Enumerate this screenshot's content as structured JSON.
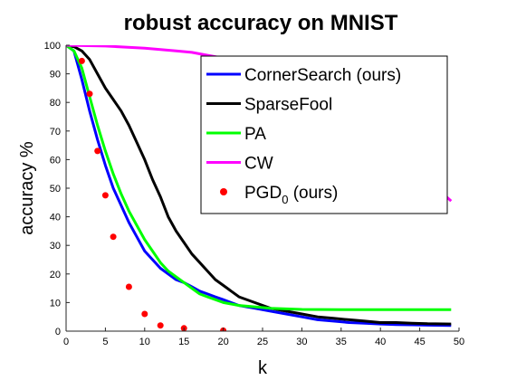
{
  "chart_data": {
    "type": "line",
    "title": "robust accuracy on MNIST",
    "xlabel": "k",
    "ylabel": "accuracy %",
    "xlim": [
      0,
      50
    ],
    "ylim": [
      0,
      100
    ],
    "xticks": [
      0,
      5,
      10,
      15,
      20,
      25,
      30,
      35,
      40,
      45,
      50
    ],
    "yticks": [
      0,
      10,
      20,
      30,
      40,
      50,
      60,
      70,
      80,
      90,
      100
    ],
    "grid": false,
    "legend_position": "top-right",
    "series": [
      {
        "name": "CornerSearch (ours)",
        "style": "line",
        "color": "#0000ff",
        "x": [
          0,
          1,
          2,
          3,
          4,
          5,
          6,
          7,
          8,
          9,
          10,
          11,
          12,
          13,
          14,
          15,
          16,
          17,
          18,
          19,
          20,
          22,
          24,
          26,
          28,
          30,
          32,
          34,
          36,
          38,
          40,
          42,
          44,
          46,
          49
        ],
        "y": [
          100,
          98,
          88,
          77,
          67,
          58,
          50,
          44,
          38,
          33,
          28,
          25,
          22,
          20,
          18,
          17,
          15.5,
          14,
          13,
          12,
          11,
          9,
          8,
          7,
          6,
          5,
          4,
          3.5,
          3,
          2.8,
          2.5,
          2.3,
          2.2,
          2.1,
          2
        ]
      },
      {
        "name": "SparseFool",
        "style": "line",
        "color": "#000000",
        "x": [
          0,
          1,
          2,
          3,
          4,
          5,
          6,
          7,
          8,
          9,
          10,
          11,
          12,
          13,
          14,
          15,
          16,
          17,
          18,
          19,
          20,
          22,
          24,
          26,
          28,
          30,
          32,
          34,
          36,
          38,
          40,
          42,
          44,
          46,
          49
        ],
        "y": [
          100,
          99.5,
          98,
          95,
          90,
          85,
          81,
          77,
          72,
          66,
          60,
          53,
          47,
          40,
          35,
          31,
          27,
          24,
          21,
          18,
          16,
          12,
          10,
          8,
          7,
          6,
          5,
          4.5,
          4,
          3.5,
          3,
          3,
          2.8,
          2.6,
          2.5
        ]
      },
      {
        "name": "PA",
        "style": "line",
        "color": "#00ff00",
        "x": [
          0,
          1,
          2,
          3,
          4,
          5,
          6,
          7,
          8,
          9,
          10,
          11,
          12,
          13,
          14,
          15,
          16,
          17,
          18,
          19,
          20,
          22,
          24,
          26,
          28,
          30,
          35,
          40,
          45,
          49
        ],
        "y": [
          100,
          98,
          92,
          82,
          72,
          63,
          55,
          48,
          42,
          37,
          32,
          28,
          24,
          21,
          19,
          17,
          15,
          13,
          12,
          11,
          10,
          9,
          8.5,
          8,
          7.8,
          7.6,
          7.5,
          7.5,
          7.5,
          7.5
        ]
      },
      {
        "name": "CW",
        "style": "line",
        "color": "#ff00ff",
        "x": [
          0,
          5,
          10,
          12,
          14,
          16,
          18,
          20,
          22,
          24,
          26,
          28,
          30,
          32,
          34,
          36,
          38,
          40,
          42,
          44,
          46,
          48,
          49
        ],
        "y": [
          100,
          99.7,
          99,
          98.5,
          98,
          97.5,
          96.5,
          95.5,
          94,
          92,
          90,
          87.5,
          85,
          82,
          78,
          75,
          71,
          67,
          62,
          58,
          53,
          48,
          45.5
        ]
      },
      {
        "name": "PGD",
        "name_subscript": "0",
        "name_suffix": " (ours)",
        "style": "markers",
        "color": "#ff0000",
        "x": [
          2,
          3,
          4,
          5,
          6,
          8,
          10,
          12,
          15,
          20
        ],
        "y": [
          94.5,
          83,
          63,
          47.5,
          33,
          15.5,
          6,
          2,
          1,
          0.2
        ]
      }
    ]
  }
}
